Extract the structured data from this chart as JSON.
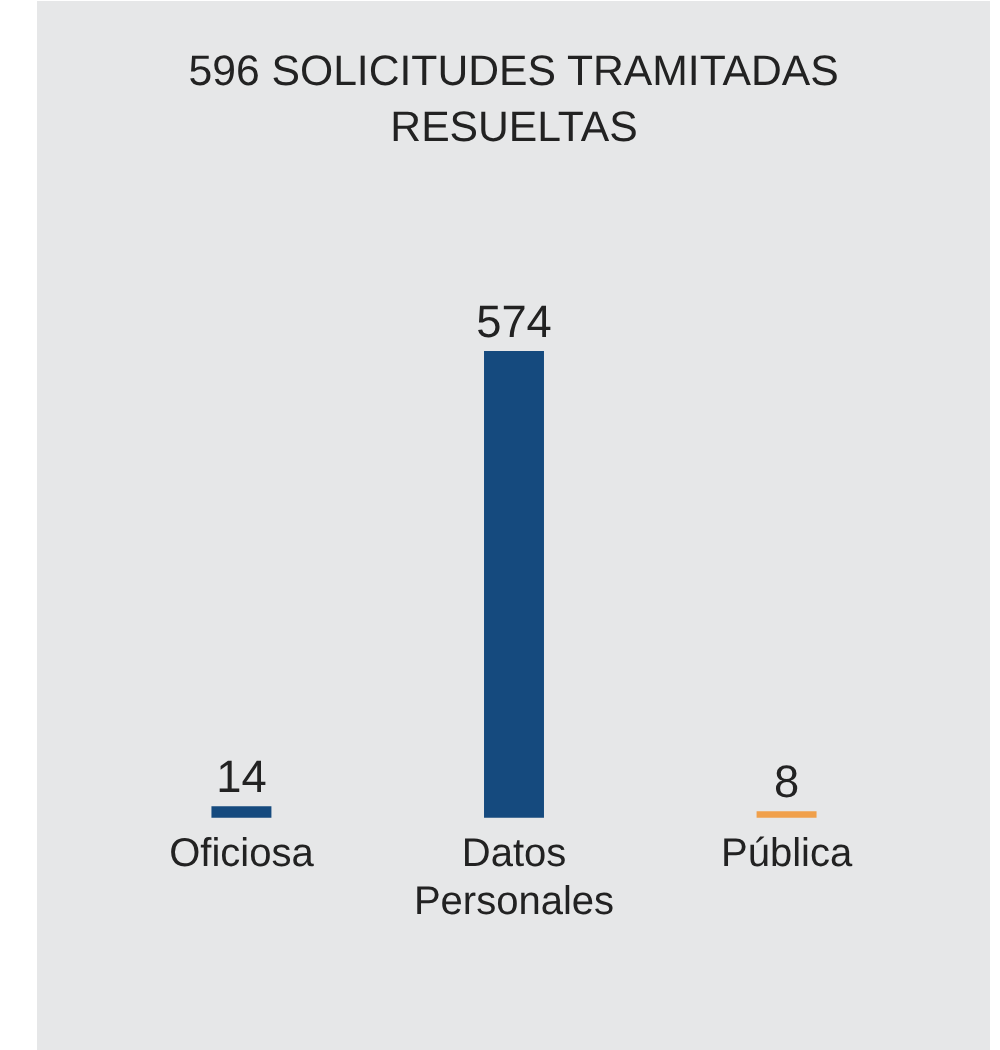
{
  "chart_data": {
    "type": "bar",
    "title": "596 SOLICITUDES TRAMITADAS RESUELTAS",
    "categories": [
      "Oficiosa",
      "Datos Personales",
      "Pública"
    ],
    "values": [
      14,
      574,
      8
    ],
    "colors": [
      "#154a7e",
      "#154a7e",
      "#f0a04b"
    ],
    "data_labels": true
  }
}
